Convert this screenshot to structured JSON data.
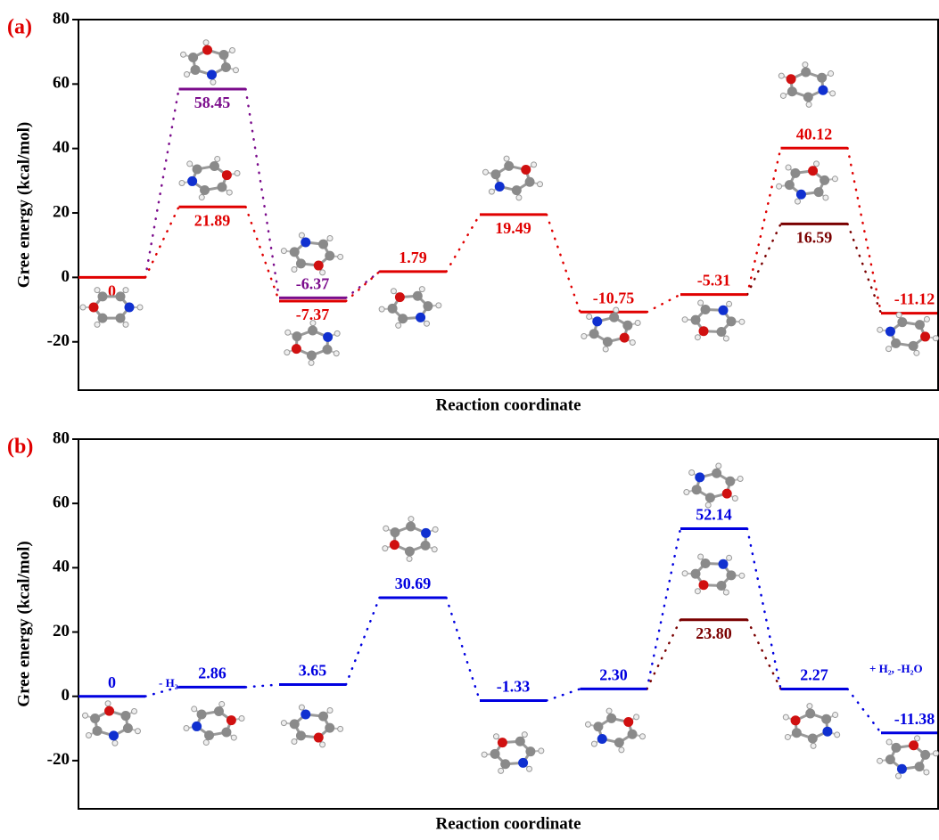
{
  "chart_data": [
    {
      "type": "energy-profile",
      "panel_label": "(a)",
      "ylabel": "Gree energy (kcal/mol)",
      "xlabel": "Reaction coordinate",
      "ylim": [
        -35,
        80
      ],
      "yticks": [
        -20,
        0,
        20,
        40,
        60,
        80
      ],
      "levels": [
        {
          "x": 0,
          "value": 0,
          "color": "#e00000"
        },
        {
          "x": 1,
          "value": 58.45,
          "color": "#7b0c8c"
        },
        {
          "x": 1,
          "value": 21.89,
          "color": "#e00000"
        },
        {
          "x": 2,
          "value": -6.37,
          "color": "#7b0c8c"
        },
        {
          "x": 2,
          "value": -7.37,
          "color": "#e00000"
        },
        {
          "x": 3,
          "value": 1.79,
          "color": "#e00000"
        },
        {
          "x": 4,
          "value": 19.49,
          "color": "#e00000"
        },
        {
          "x": 5,
          "value": -10.75,
          "color": "#e00000"
        },
        {
          "x": 6,
          "value": -5.31,
          "color": "#e00000"
        },
        {
          "x": 7,
          "value": 40.12,
          "color": "#e00000"
        },
        {
          "x": 7,
          "value": 16.59,
          "color": "#7a0000"
        },
        {
          "x": 8,
          "value": -11.12,
          "color": "#e00000"
        }
      ]
    },
    {
      "type": "energy-profile",
      "panel_label": "(b)",
      "ylabel": "Gree energy (kcal/mol)",
      "xlabel": "Reaction coordinate",
      "ylim": [
        -35,
        80
      ],
      "yticks": [
        -20,
        0,
        20,
        40,
        60,
        80
      ],
      "annotations": [
        "- H₂",
        "+ H₂, -H₂O"
      ],
      "levels": [
        {
          "x": 0,
          "value": 0,
          "color": "#0000e0"
        },
        {
          "x": 1,
          "value": 2.86,
          "color": "#0000e0"
        },
        {
          "x": 2,
          "value": 3.65,
          "color": "#0000e0"
        },
        {
          "x": 3,
          "value": 30.69,
          "color": "#0000e0"
        },
        {
          "x": 4,
          "value": -1.33,
          "color": "#0000e0"
        },
        {
          "x": 5,
          "value": 2.3,
          "value_label": "2.30",
          "color": "#0000e0"
        },
        {
          "x": 6,
          "value": 52.14,
          "color": "#0000e0"
        },
        {
          "x": 6,
          "value": 23.8,
          "value_label": "23.80",
          "color": "#7a0000"
        },
        {
          "x": 7,
          "value": 2.27,
          "color": "#0000e0"
        },
        {
          "x": 8,
          "value": -11.38,
          "color": "#0000e0"
        }
      ]
    }
  ]
}
